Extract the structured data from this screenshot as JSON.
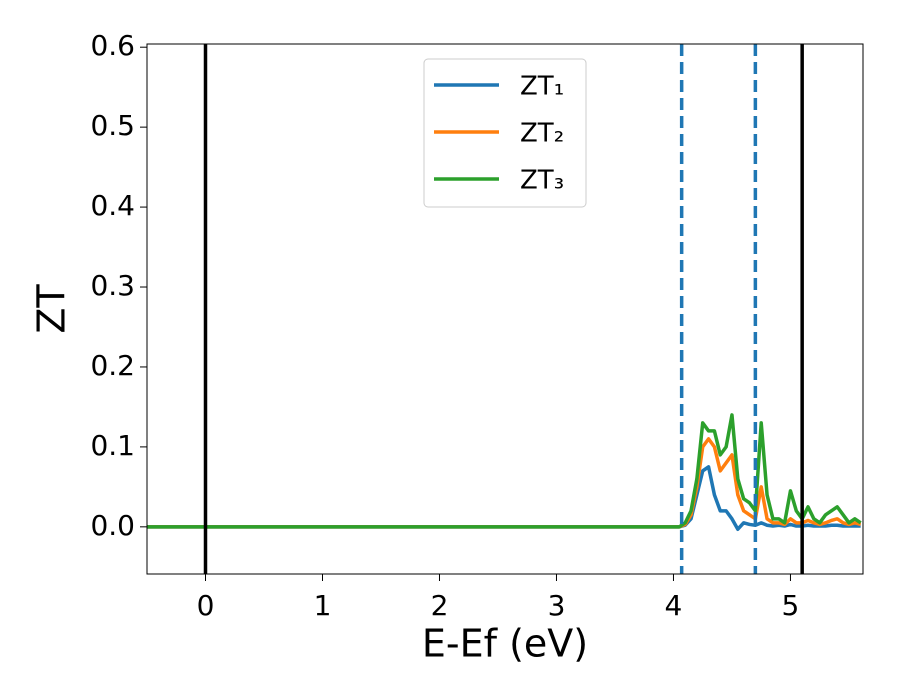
{
  "chart_data": {
    "type": "line",
    "xlabel": "E-Ef (eV)",
    "ylabel": "ZT",
    "x": [
      -0.5,
      4.0,
      4.05,
      4.1,
      4.15,
      4.2,
      4.25,
      4.3,
      4.35,
      4.4,
      4.45,
      4.5,
      4.55,
      4.6,
      4.65,
      4.7,
      4.75,
      4.8,
      4.85,
      4.9,
      4.95,
      5.0,
      5.05,
      5.1,
      5.15,
      5.2,
      5.25,
      5.3,
      5.35,
      5.4,
      5.45,
      5.5,
      5.55,
      5.6
    ],
    "series": [
      {
        "name": "ZT₁",
        "color": "#1f77b4",
        "values": [
          0,
          0,
          0,
          0.002,
          0.01,
          0.04,
          0.07,
          0.075,
          0.04,
          0.02,
          0.02,
          0.01,
          -0.003,
          0.005,
          0.003,
          0.002,
          0.005,
          0.002,
          0.001,
          0.002,
          0.001,
          0.003,
          0.001,
          0.001,
          0.002,
          0.001,
          0.001,
          0.001,
          0.002,
          0.002,
          0.001,
          0.001,
          0.001,
          0.001
        ]
      },
      {
        "name": "ZT₂",
        "color": "#ff7f0e",
        "values": [
          0,
          0,
          0,
          0.003,
          0.015,
          0.05,
          0.1,
          0.11,
          0.1,
          0.07,
          0.08,
          0.09,
          0.04,
          0.02,
          0.015,
          0.01,
          0.05,
          0.01,
          0.005,
          0.005,
          0.003,
          0.01,
          0.005,
          0.005,
          0.008,
          0.005,
          0.003,
          0.005,
          0.008,
          0.01,
          0.005,
          0.003,
          0.005,
          0.003
        ]
      },
      {
        "name": "ZT₃",
        "color": "#2ca02c",
        "values": [
          0,
          0,
          0,
          0.005,
          0.02,
          0.06,
          0.13,
          0.12,
          0.12,
          0.09,
          0.1,
          0.14,
          0.06,
          0.035,
          0.03,
          0.02,
          0.13,
          0.04,
          0.01,
          0.01,
          0.005,
          0.045,
          0.02,
          0.01,
          0.025,
          0.01,
          0.005,
          0.015,
          0.02,
          0.025,
          0.015,
          0.005,
          0.01,
          0.005
        ]
      }
    ],
    "reference_lines": [
      {
        "x": 0,
        "color": "#000000",
        "style": "solid"
      },
      {
        "x": 5.1,
        "color": "#000000",
        "style": "solid"
      },
      {
        "x": 4.07,
        "color": "#1f77b4",
        "style": "dashed"
      },
      {
        "x": 4.7,
        "color": "#1f77b4",
        "style": "dashed"
      }
    ],
    "xlim": [
      -0.5,
      5.62
    ],
    "ylim": [
      -0.059,
      0.604
    ],
    "xticks": [
      0,
      1,
      2,
      3,
      4,
      5
    ],
    "yticks": [
      {
        "value": 0,
        "label": "0.0"
      },
      0.1,
      0.2,
      0.3,
      0.4,
      0.5,
      0.6
    ],
    "legend": "upper center"
  }
}
